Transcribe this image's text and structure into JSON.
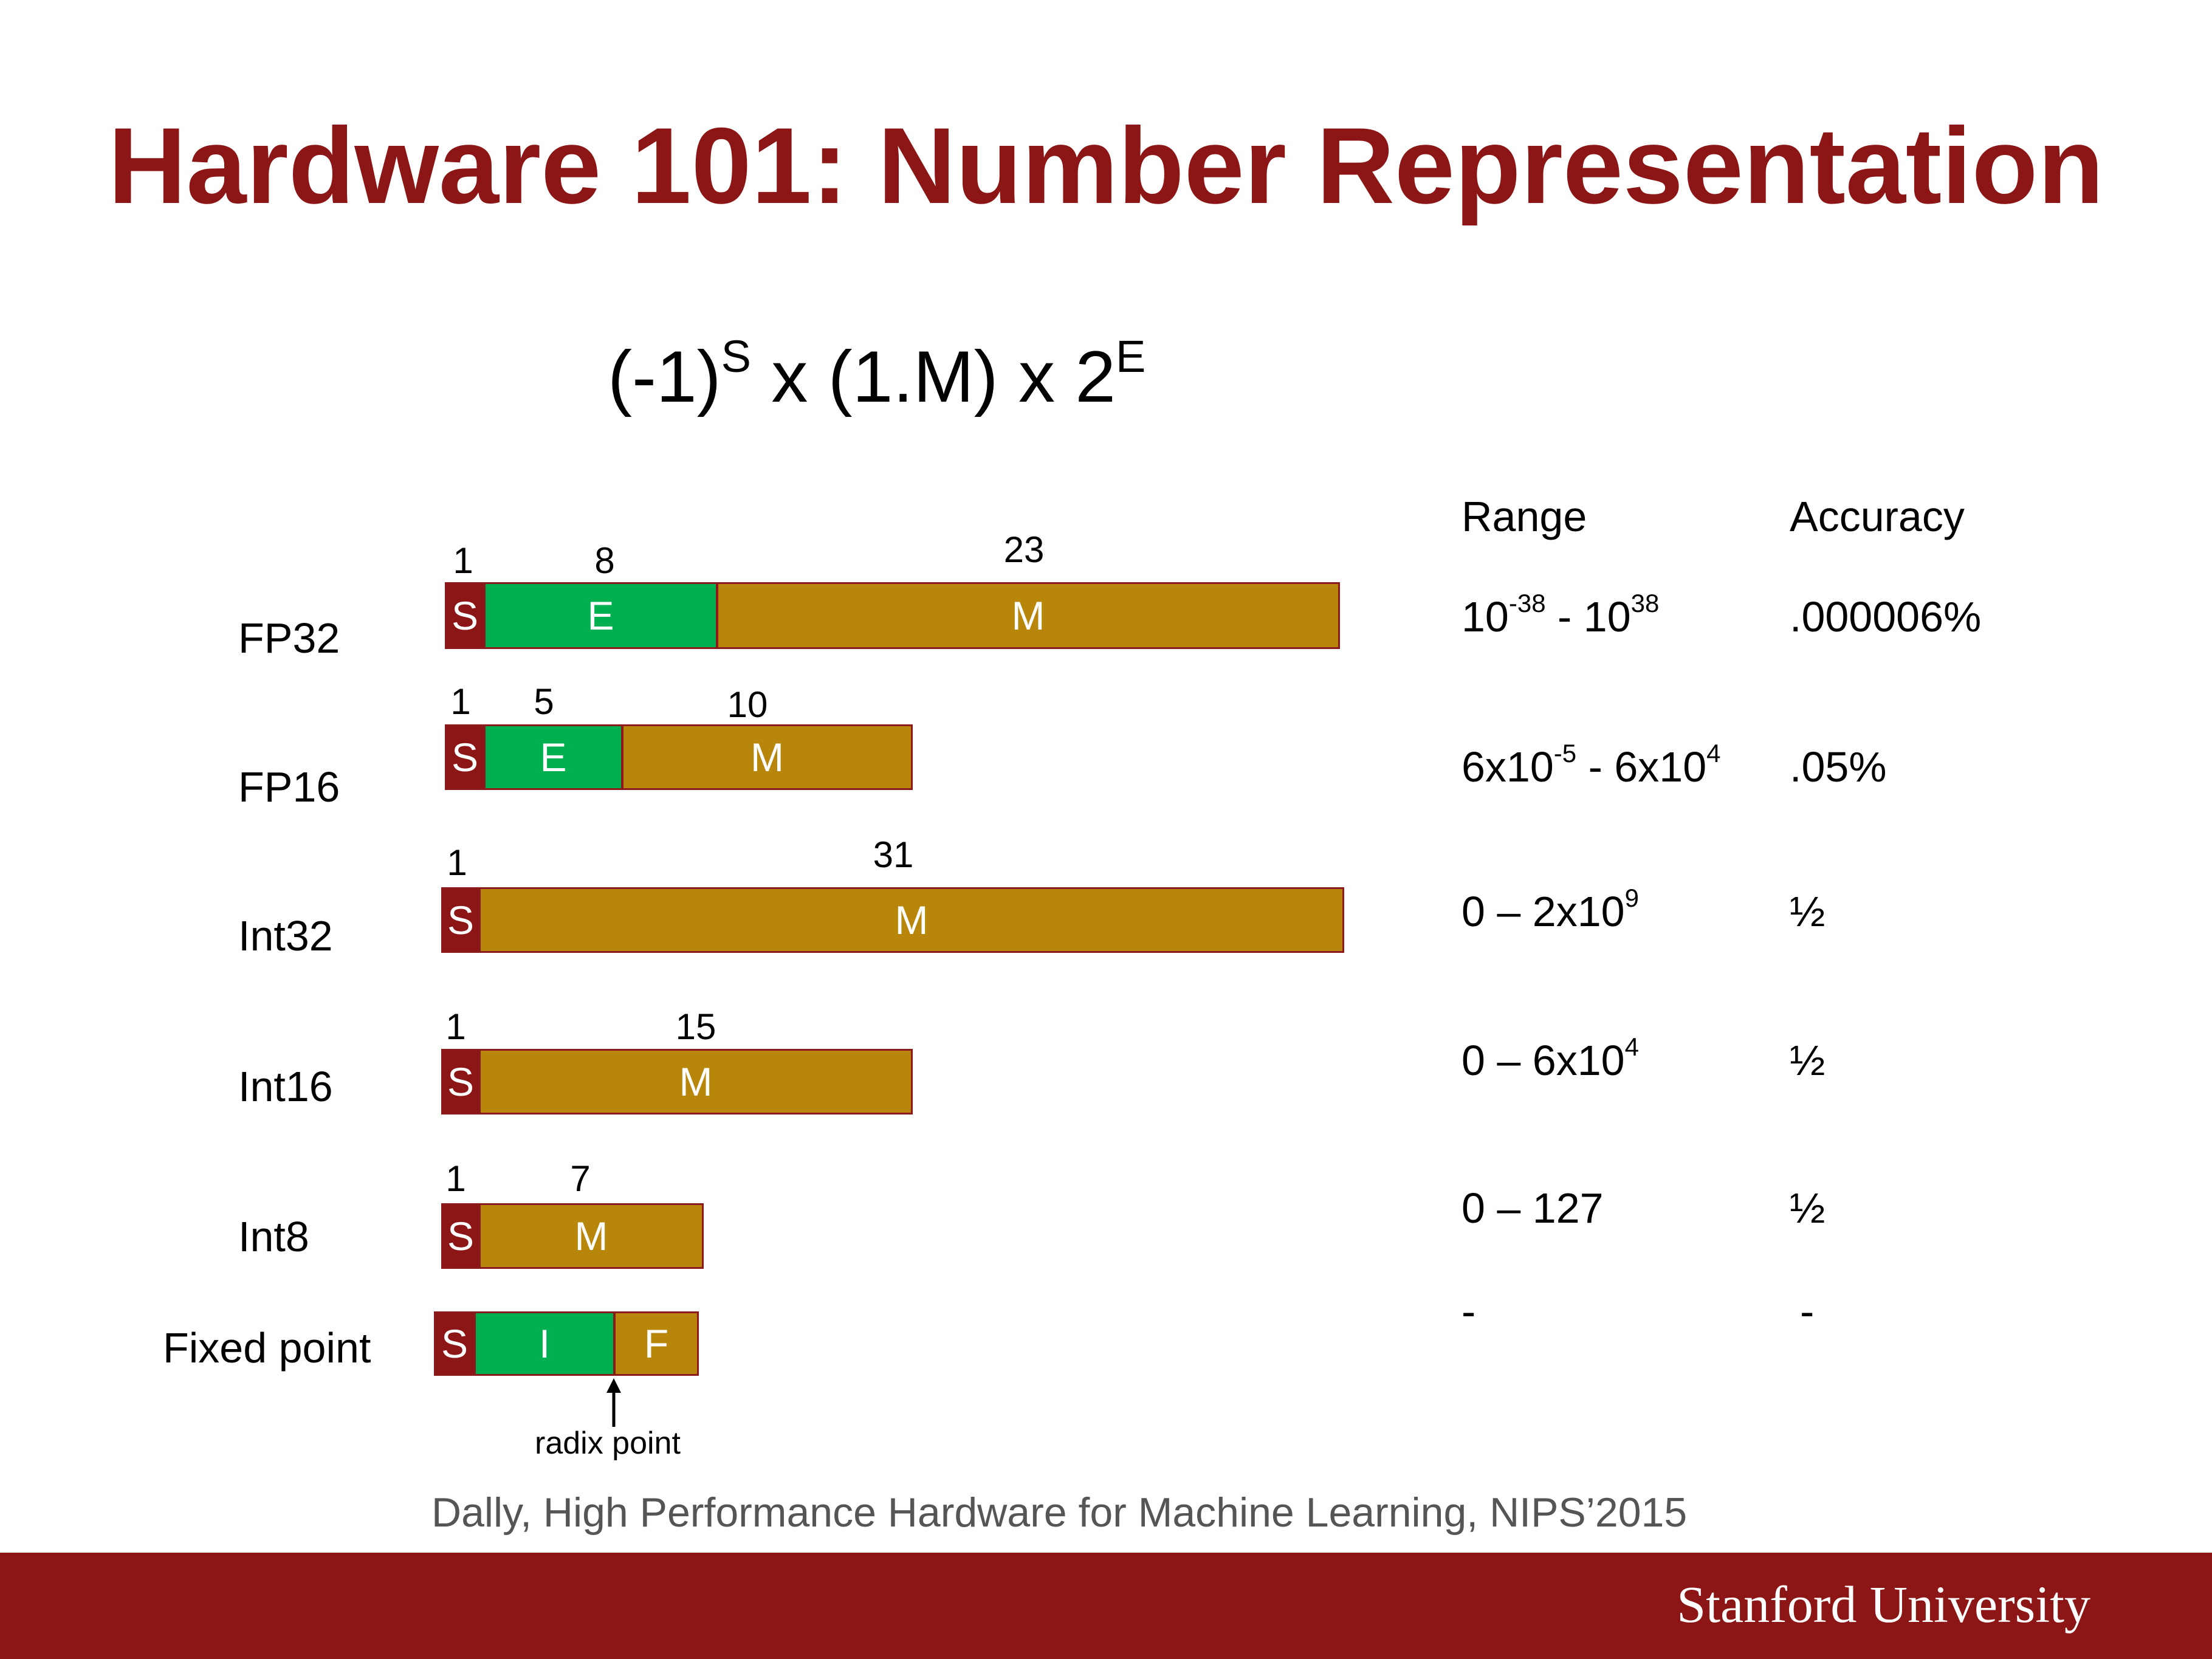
{
  "title": "Hardware 101: Number Representation",
  "formula": {
    "base": "(-1)",
    "sign_exp": "S",
    "middle": "x (1.M) x 2",
    "exp_exp": "E"
  },
  "columns": {
    "range": "Range",
    "accuracy": "Accuracy"
  },
  "formats": [
    {
      "name": "FP32",
      "fields": [
        {
          "letter": "S",
          "bits": "1",
          "kind": "sign"
        },
        {
          "letter": "E",
          "bits": "8",
          "kind": "exponent"
        },
        {
          "letter": "M",
          "bits": "23",
          "kind": "mantissa"
        }
      ],
      "range": {
        "a": "10",
        "a_exp": "-38",
        "sep": " - ",
        "b": "10",
        "b_exp": "38"
      },
      "accuracy": ".000006%"
    },
    {
      "name": "FP16",
      "fields": [
        {
          "letter": "S",
          "bits": "1",
          "kind": "sign"
        },
        {
          "letter": "E",
          "bits": "5",
          "kind": "exponent"
        },
        {
          "letter": "M",
          "bits": "10",
          "kind": "mantissa"
        }
      ],
      "range": {
        "a": "6x10",
        "a_exp": "-5",
        "sep": " - ",
        "b": "6x10",
        "b_exp": "4"
      },
      "accuracy": ".05%"
    },
    {
      "name": "Int32",
      "fields": [
        {
          "letter": "S",
          "bits": "1",
          "kind": "sign"
        },
        {
          "letter": "M",
          "bits": "31",
          "kind": "mantissa"
        }
      ],
      "range": {
        "a": "0 – 2x10",
        "a_exp": "9"
      },
      "accuracy": "½"
    },
    {
      "name": "Int16",
      "fields": [
        {
          "letter": "S",
          "bits": "1",
          "kind": "sign"
        },
        {
          "letter": "M",
          "bits": "15",
          "kind": "mantissa"
        }
      ],
      "range": {
        "a": "0 – 6x10",
        "a_exp": "4"
      },
      "accuracy": "½"
    },
    {
      "name": "Int8",
      "fields": [
        {
          "letter": "S",
          "bits": "1",
          "kind": "sign"
        },
        {
          "letter": "M",
          "bits": "7",
          "kind": "mantissa"
        }
      ],
      "range": {
        "a": "0 – 127"
      },
      "accuracy": "½"
    },
    {
      "name": "Fixed point",
      "fields": [
        {
          "letter": "S",
          "kind": "sign"
        },
        {
          "letter": "I",
          "kind": "exponent"
        },
        {
          "letter": "F",
          "kind": "mantissa"
        }
      ],
      "range": {
        "a": "-"
      },
      "accuracy": "-"
    }
  ],
  "radix_label": "radix point",
  "caption": "Dally, High Performance Hardware for Machine Learning, NIPS’2015",
  "footer": "Stanford University",
  "colors": {
    "title": "#8c1515",
    "sign": "#8c1515",
    "exponent": "#00b050",
    "mantissa": "#b8860b",
    "footer": "#8c1515"
  }
}
